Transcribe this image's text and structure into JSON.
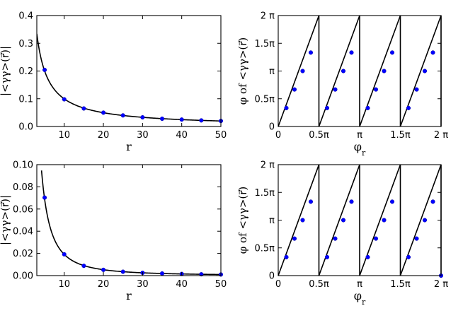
{
  "figure": {
    "panels": 4,
    "layout": "2x2"
  },
  "chart_data": [
    {
      "type": "line",
      "series": [
        {
          "kind": "curve",
          "values_from": "markers"
        },
        {
          "kind": "markers",
          "color": "#0000ff",
          "x": [
            5,
            10,
            15,
            20,
            25,
            30,
            35,
            40,
            45,
            50
          ],
          "y": [
            0.204,
            0.098,
            0.065,
            0.05,
            0.04,
            0.033,
            0.028,
            0.025,
            0.022,
            0.02
          ]
        }
      ],
      "curve_x_range": [
        3,
        50
      ],
      "xlabel": "r",
      "ylabel": "|<γγ>(r⃗)|",
      "xlim": [
        3,
        50
      ],
      "ylim": [
        0,
        0.4
      ],
      "xticks": [
        10,
        20,
        30,
        40,
        50
      ],
      "xtick_labels": [
        "10",
        "20",
        "30",
        "40",
        "50"
      ],
      "yticks": [
        0,
        0.1,
        0.2,
        0.3,
        0.4
      ],
      "ytick_labels": [
        "0.0",
        "0.1",
        "0.2",
        "0.3",
        "0.4"
      ],
      "grid": false
    },
    {
      "type": "line",
      "series": [
        {
          "kind": "sawtooth",
          "segments": 4,
          "color": "#000000"
        },
        {
          "kind": "markers",
          "color": "#0000ff",
          "x": [
            0.1,
            0.2,
            0.3,
            0.4,
            0.6,
            0.7,
            0.8,
            0.9,
            1.1,
            1.2,
            1.3,
            1.4,
            1.6,
            1.7,
            1.8,
            1.9
          ],
          "y": [
            0.333,
            0.667,
            1.0,
            1.333,
            0.333,
            0.667,
            1.0,
            1.333,
            0.333,
            0.667,
            1.0,
            1.333,
            0.333,
            0.667,
            1.0,
            1.333
          ]
        }
      ],
      "x_unit": "π",
      "y_unit": "π",
      "xlabel": "φ_r",
      "ylabel": "φ of <γγ>(r⃗)",
      "xlim": [
        0,
        2
      ],
      "ylim": [
        0,
        2
      ],
      "xticks": [
        0,
        0.5,
        1,
        1.5,
        2
      ],
      "xtick_labels": [
        "0",
        "0.5π",
        "π",
        "1.5π",
        "2 π"
      ],
      "yticks": [
        0,
        0.5,
        1,
        1.5,
        2
      ],
      "ytick_labels": [
        "0",
        "0.5π",
        "π",
        "1.5π",
        "2 π"
      ],
      "grid": false
    },
    {
      "type": "line",
      "series": [
        {
          "kind": "curve",
          "values_from": "markers"
        },
        {
          "kind": "markers",
          "color": "#0000ff",
          "x": [
            5,
            10,
            15,
            20,
            25,
            30,
            35,
            40,
            45,
            50
          ],
          "y": [
            0.0703,
            0.0192,
            0.0088,
            0.0052,
            0.0035,
            0.0025,
            0.0019,
            0.0015,
            0.0012,
            0.001
          ]
        }
      ],
      "curve_x_range": [
        4.2,
        50
      ],
      "xlabel": "r",
      "ylabel": "|<γγ>(r⃗)|",
      "xlim": [
        3,
        50
      ],
      "ylim": [
        0,
        0.1
      ],
      "xticks": [
        10,
        20,
        30,
        40,
        50
      ],
      "xtick_labels": [
        "10",
        "20",
        "30",
        "40",
        "50"
      ],
      "yticks": [
        0,
        0.02,
        0.04,
        0.06,
        0.08,
        0.1
      ],
      "ytick_labels": [
        "0.00",
        "0.02",
        "0.04",
        "0.06",
        "0.08",
        "0.10"
      ],
      "grid": false
    },
    {
      "type": "line",
      "series": [
        {
          "kind": "sawtooth",
          "segments": 4,
          "color": "#000000"
        },
        {
          "kind": "markers",
          "color": "#0000ff",
          "x": [
            0.1,
            0.2,
            0.3,
            0.4,
            0.6,
            0.7,
            0.8,
            0.9,
            1.1,
            1.2,
            1.3,
            1.4,
            1.6,
            1.7,
            1.8,
            1.9,
            2.0
          ],
          "y": [
            0.333,
            0.667,
            1.0,
            1.333,
            0.333,
            0.667,
            1.0,
            1.333,
            0.333,
            0.667,
            1.0,
            1.333,
            0.333,
            0.667,
            1.0,
            1.333,
            0
          ]
        }
      ],
      "x_unit": "π",
      "y_unit": "π",
      "xlabel": "φ_r",
      "ylabel": "φ of <γγ>(r⃗)",
      "xlim": [
        0,
        2
      ],
      "ylim": [
        0,
        2
      ],
      "xticks": [
        0,
        0.5,
        1,
        1.5,
        2
      ],
      "xtick_labels": [
        "0",
        "0.5π",
        "π",
        "1.5π",
        "2 π"
      ],
      "yticks": [
        0,
        0.5,
        1,
        1.5,
        2
      ],
      "ytick_labels": [
        "0",
        "0.5π",
        "π",
        "1.5π",
        "2 π"
      ],
      "grid": false
    }
  ]
}
